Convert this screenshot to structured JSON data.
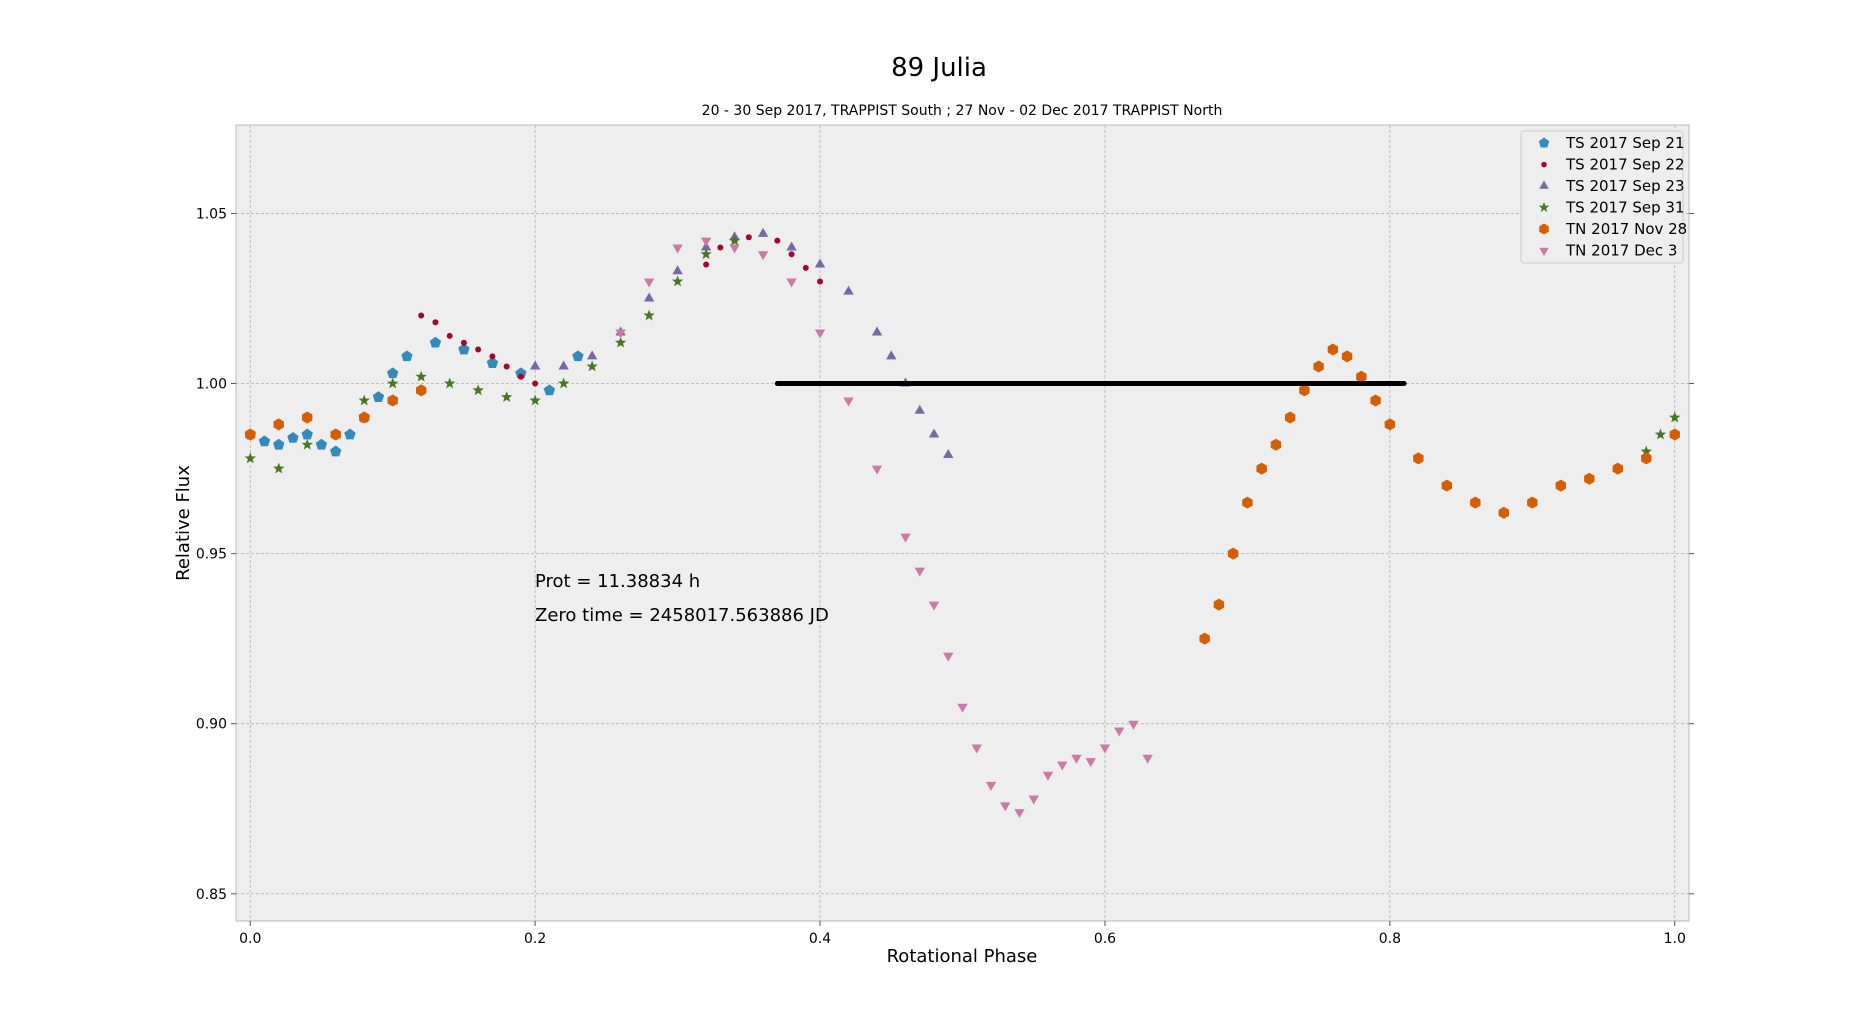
{
  "chart_data": {
    "type": "scatter",
    "title": "89 Julia",
    "subtitle": "20 - 30 Sep 2017, TRAPPIST South ; 27 Nov - 02 Dec 2017 TRAPPIST North",
    "xlabel": "Rotational Phase",
    "ylabel": "Relative Flux",
    "xlim": [
      -0.01,
      1.01
    ],
    "ylim": [
      0.842,
      1.076
    ],
    "xticks": [
      0.0,
      0.2,
      0.4,
      0.6,
      0.8,
      1.0
    ],
    "xtick_labels": [
      "0.0",
      "0.2",
      "0.4",
      "0.6",
      "0.8",
      "1.0"
    ],
    "yticks": [
      0.85,
      0.9,
      0.95,
      1.0,
      1.05
    ],
    "ytick_labels": [
      "0.85",
      "0.90",
      "0.95",
      "1.00",
      "1.05"
    ],
    "grid": true,
    "legend_position": "top-right",
    "annotations": [
      {
        "text": "Prot = 11.38834 h",
        "x": 0.2,
        "y": 0.94
      },
      {
        "text": "Zero time = 2458017.563886 JD",
        "x": 0.2,
        "y": 0.93
      }
    ],
    "reference_line": {
      "x": [
        0.37,
        0.81
      ],
      "y": 1.0,
      "color": "#000000"
    },
    "series": [
      {
        "name": "TS 2017 Sep 21",
        "marker": "pentagon",
        "color": "#348ABD",
        "x": [
          0.0,
          0.01,
          0.02,
          0.03,
          0.04,
          0.05,
          0.06,
          0.07,
          0.08,
          0.09,
          0.1,
          0.11,
          0.13,
          0.15,
          0.17,
          0.19,
          0.21,
          0.23
        ],
        "y": [
          0.985,
          0.983,
          0.982,
          0.984,
          0.985,
          0.982,
          0.98,
          0.985,
          0.99,
          0.996,
          1.003,
          1.008,
          1.012,
          1.01,
          1.006,
          1.003,
          0.998,
          1.008
        ]
      },
      {
        "name": "TS 2017 Sep 22",
        "marker": "dot",
        "color": "#A60628",
        "x": [
          0.12,
          0.13,
          0.14,
          0.15,
          0.16,
          0.17,
          0.18,
          0.19,
          0.2,
          0.32,
          0.33,
          0.34,
          0.35,
          0.36,
          0.37,
          0.38,
          0.39,
          0.4
        ],
        "y": [
          1.02,
          1.018,
          1.014,
          1.012,
          1.01,
          1.008,
          1.005,
          1.002,
          1.0,
          1.035,
          1.04,
          1.042,
          1.043,
          1.044,
          1.042,
          1.038,
          1.034,
          1.03
        ]
      },
      {
        "name": "TS 2017 Sep 23",
        "marker": "triangle-up",
        "color": "#7A68A6",
        "x": [
          0.2,
          0.22,
          0.24,
          0.26,
          0.28,
          0.3,
          0.32,
          0.34,
          0.36,
          0.38,
          0.4,
          0.42,
          0.44,
          0.45,
          0.46,
          0.47,
          0.48,
          0.49
        ],
        "y": [
          1.005,
          1.005,
          1.008,
          1.015,
          1.025,
          1.033,
          1.04,
          1.043,
          1.044,
          1.04,
          1.035,
          1.027,
          1.015,
          1.008,
          1.0,
          0.992,
          0.985,
          0.979
        ]
      },
      {
        "name": "TS 2017 Sep 31",
        "marker": "star",
        "color": "#467821",
        "x": [
          0.0,
          0.02,
          0.04,
          0.06,
          0.08,
          0.1,
          0.12,
          0.14,
          0.16,
          0.18,
          0.2,
          0.22,
          0.24,
          0.26,
          0.28,
          0.3,
          0.32,
          0.34,
          0.98,
          0.99,
          1.0
        ],
        "y": [
          0.978,
          0.975,
          0.982,
          0.985,
          0.995,
          1.0,
          1.002,
          1.0,
          0.998,
          0.996,
          0.995,
          1.0,
          1.005,
          1.012,
          1.02,
          1.03,
          1.038,
          1.042,
          0.98,
          0.985,
          0.99
        ]
      },
      {
        "name": "TN 2017 Nov 28",
        "marker": "hexagon",
        "color": "#D55E00",
        "x": [
          0.0,
          0.02,
          0.04,
          0.06,
          0.08,
          0.1,
          0.12,
          0.67,
          0.68,
          0.69,
          0.7,
          0.71,
          0.72,
          0.73,
          0.74,
          0.75,
          0.76,
          0.77,
          0.78,
          0.79,
          0.8,
          0.82,
          0.84,
          0.86,
          0.88,
          0.9,
          0.92,
          0.94,
          0.96,
          0.98,
          1.0
        ],
        "y": [
          0.985,
          0.988,
          0.99,
          0.985,
          0.99,
          0.995,
          0.998,
          0.925,
          0.935,
          0.95,
          0.965,
          0.975,
          0.982,
          0.99,
          0.998,
          1.005,
          1.01,
          1.008,
          1.002,
          0.995,
          0.988,
          0.978,
          0.97,
          0.965,
          0.962,
          0.965,
          0.97,
          0.972,
          0.975,
          0.978,
          0.985
        ]
      },
      {
        "name": "TN 2017 Dec 3",
        "marker": "triangle-down",
        "color": "#CC79A7",
        "x": [
          0.26,
          0.28,
          0.3,
          0.32,
          0.34,
          0.36,
          0.38,
          0.4,
          0.42,
          0.44,
          0.46,
          0.47,
          0.48,
          0.49,
          0.5,
          0.51,
          0.52,
          0.53,
          0.54,
          0.55,
          0.56,
          0.57,
          0.58,
          0.59,
          0.6,
          0.61,
          0.62,
          0.63
        ],
        "y": [
          1.015,
          1.03,
          1.04,
          1.042,
          1.04,
          1.038,
          1.03,
          1.015,
          0.995,
          0.975,
          0.955,
          0.945,
          0.935,
          0.92,
          0.905,
          0.893,
          0.882,
          0.876,
          0.874,
          0.878,
          0.885,
          0.888,
          0.89,
          0.889,
          0.893,
          0.898,
          0.9,
          0.89
        ]
      }
    ]
  }
}
